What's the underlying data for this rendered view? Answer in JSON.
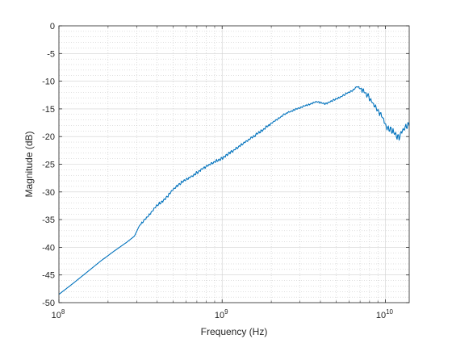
{
  "chart_data": {
    "type": "line",
    "title": "",
    "xlabel": "Frequency (Hz)",
    "ylabel": "Magnitude (dB)",
    "xscale": "log",
    "xlim": [
      100000000,
      14000000000
    ],
    "ylim": [
      -50,
      0
    ],
    "grid": "major and minor, dotted",
    "legend": "none",
    "line_color": "#0072BD",
    "x_ticks": [
      {
        "value": 100000000,
        "base": "10",
        "exp": "8"
      },
      {
        "value": 1000000000,
        "base": "10",
        "exp": "9"
      },
      {
        "value": 10000000000,
        "base": "10",
        "exp": "10"
      }
    ],
    "y_ticks": [
      {
        "value": 0,
        "label": "0"
      },
      {
        "value": -5,
        "label": "-5"
      },
      {
        "value": -10,
        "label": "-10"
      },
      {
        "value": -15,
        "label": "-15"
      },
      {
        "value": -20,
        "label": "-20"
      },
      {
        "value": -25,
        "label": "-25"
      },
      {
        "value": -30,
        "label": "-30"
      },
      {
        "value": -35,
        "label": "-35"
      },
      {
        "value": -40,
        "label": "-40"
      },
      {
        "value": -45,
        "label": "-45"
      },
      {
        "value": -50,
        "label": "-50"
      }
    ],
    "series": [
      {
        "x": [
          100000000,
          120000000,
          150000000,
          180000000,
          220000000,
          260000000,
          290000000,
          310000000,
          330000000,
          360000000,
          400000000,
          450000000,
          500000000,
          570000000,
          650000000,
          750000000,
          850000000,
          1000000000,
          1200000000,
          1400000000,
          1700000000,
          2000000000,
          2400000000,
          2800000000,
          3300000000,
          3800000000,
          4300000000,
          4800000000,
          5300000000,
          5800000000,
          6300000000,
          6700000000,
          7000000000,
          7500000000,
          8000000000,
          8500000000,
          9000000000,
          9500000000,
          10000000000,
          10500000000,
          11000000000,
          11500000000,
          12000000000,
          12500000000,
          13000000000,
          13500000000,
          14000000000
        ],
        "y": [
          -48.5,
          -46.7,
          -44.4,
          -42.5,
          -40.6,
          -39.1,
          -38,
          -36.2,
          -35.2,
          -34,
          -32.4,
          -31.2,
          -29.6,
          -28.2,
          -27.2,
          -25.9,
          -24.9,
          -23.9,
          -22.3,
          -20.9,
          -19.2,
          -17.6,
          -16,
          -15.1,
          -14.3,
          -13.7,
          -14.1,
          -13.4,
          -12.9,
          -12.2,
          -11.7,
          -10.9,
          -11.3,
          -12,
          -13,
          -14.2,
          -15.2,
          -16.3,
          -17.8,
          -18.8,
          -18.9,
          -19.5,
          -20.3,
          -19.4,
          -18.6,
          -18.2,
          -17.8
        ]
      }
    ]
  }
}
